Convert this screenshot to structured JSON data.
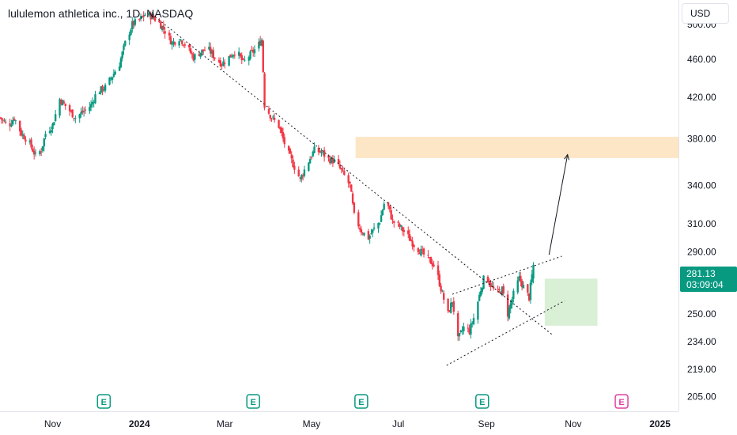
{
  "header": {
    "symbol_title": "lululemon athletica inc., 1D, NASDAQ",
    "currency_label": "USD"
  },
  "price_label": {
    "price": "281.13",
    "countdown": "03:09:04"
  },
  "colors": {
    "up": "#089981",
    "down": "#f23645",
    "target_zone": "#fde6c6",
    "support_zone": "#d9efd6",
    "earnings_past": "#089981",
    "earnings_future": "#e040a0",
    "price_label": "#089981"
  },
  "icons": {
    "earnings_marker": "E"
  },
  "chart_data": {
    "type": "candlestick",
    "title": "lululemon athletica inc., 1D, NASDAQ",
    "price_axis": {
      "scale": "log",
      "ticks": [
        205,
        219,
        234,
        250,
        290,
        310,
        340,
        380,
        420,
        460,
        500
      ],
      "tick_labels": [
        "205.00",
        "219.00",
        "234.00",
        "250.00",
        "290.00",
        "310.00",
        "340.00",
        "380.00",
        "420.00",
        "460.00",
        "500.00"
      ],
      "range": [
        198,
        530
      ]
    },
    "time_axis": {
      "labels": [
        "Nov",
        "2024",
        "Mar",
        "May",
        "Jul",
        "Sep",
        "Nov",
        "2025"
      ],
      "bold_labels": [
        "2024",
        "2025"
      ],
      "range": [
        "2023-09-25",
        "2025-01-14"
      ]
    },
    "candles_sampled_path": [
      [
        "2023-09-25",
        400
      ],
      [
        "2023-10-01",
        392
      ],
      [
        "2023-10-05",
        400
      ],
      [
        "2023-10-10",
        385
      ],
      [
        "2023-10-15",
        378
      ],
      [
        "2023-10-20",
        365
      ],
      [
        "2023-10-24",
        370
      ],
      [
        "2023-10-27",
        385
      ],
      [
        "2023-11-01",
        393
      ],
      [
        "2023-11-06",
        418
      ],
      [
        "2023-11-12",
        408
      ],
      [
        "2023-11-17",
        400
      ],
      [
        "2023-11-22",
        405
      ],
      [
        "2023-11-28",
        412
      ],
      [
        "2023-12-02",
        425
      ],
      [
        "2023-12-08",
        430
      ],
      [
        "2023-12-13",
        442
      ],
      [
        "2023-12-18",
        455
      ],
      [
        "2023-12-22",
        478
      ],
      [
        "2023-12-27",
        500
      ],
      [
        "2024-01-01",
        505
      ],
      [
        "2024-01-05",
        512
      ],
      [
        "2024-01-09",
        510
      ],
      [
        "2024-01-14",
        504
      ],
      [
        "2024-01-19",
        492
      ],
      [
        "2024-01-24",
        478
      ],
      [
        "2024-01-29",
        484
      ],
      [
        "2024-02-03",
        475
      ],
      [
        "2024-02-08",
        462
      ],
      [
        "2024-02-13",
        468
      ],
      [
        "2024-02-18",
        472
      ],
      [
        "2024-02-23",
        462
      ],
      [
        "2024-02-28",
        455
      ],
      [
        "2024-03-04",
        462
      ],
      [
        "2024-03-09",
        470
      ],
      [
        "2024-03-14",
        456
      ],
      [
        "2024-03-19",
        465
      ],
      [
        "2024-03-24",
        474
      ],
      [
        "2024-03-27",
        482
      ],
      [
        "2024-03-29",
        412
      ],
      [
        "2024-04-03",
        400
      ],
      [
        "2024-04-08",
        392
      ],
      [
        "2024-04-13",
        372
      ],
      [
        "2024-04-18",
        358
      ],
      [
        "2024-04-23",
        345
      ],
      [
        "2024-04-28",
        358
      ],
      [
        "2024-05-03",
        370
      ],
      [
        "2024-05-08",
        368
      ],
      [
        "2024-05-13",
        362
      ],
      [
        "2024-05-18",
        360
      ],
      [
        "2024-05-23",
        350
      ],
      [
        "2024-05-28",
        340
      ],
      [
        "2024-05-31",
        316
      ],
      [
        "2024-06-05",
        305
      ],
      [
        "2024-06-10",
        300
      ],
      [
        "2024-06-15",
        308
      ],
      [
        "2024-06-18",
        312
      ],
      [
        "2024-06-22",
        330
      ],
      [
        "2024-06-27",
        312
      ],
      [
        "2024-07-02",
        308
      ],
      [
        "2024-07-07",
        302
      ],
      [
        "2024-07-12",
        295
      ],
      [
        "2024-07-17",
        290
      ],
      [
        "2024-07-22",
        285
      ],
      [
        "2024-07-27",
        280
      ],
      [
        "2024-08-01",
        262
      ],
      [
        "2024-08-05",
        250
      ],
      [
        "2024-08-08",
        258
      ],
      [
        "2024-08-12",
        235
      ],
      [
        "2024-08-16",
        242
      ],
      [
        "2024-08-20",
        240
      ],
      [
        "2024-08-24",
        250
      ],
      [
        "2024-08-28",
        265
      ],
      [
        "2024-08-31",
        275
      ],
      [
        "2024-09-04",
        268
      ],
      [
        "2024-09-08",
        262
      ],
      [
        "2024-09-12",
        265
      ],
      [
        "2024-09-16",
        250
      ],
      [
        "2024-09-20",
        262
      ],
      [
        "2024-09-24",
        272
      ],
      [
        "2024-09-28",
        265
      ],
      [
        "2024-10-01",
        260
      ],
      [
        "2024-10-04",
        281.13
      ]
    ],
    "last_price": 281.13,
    "drawings": {
      "downtrend_line": [
        [
          "2024-01-10",
          512
        ],
        [
          "2024-10-17",
          238
        ]
      ],
      "upper_channel_line": [
        [
          "2024-08-08",
          262
        ],
        [
          "2024-10-24",
          287
        ]
      ],
      "lower_channel_line": [
        [
          "2024-08-04",
          221
        ],
        [
          "2024-10-26",
          258
        ]
      ],
      "projection_arrow": [
        [
          "2024-10-15",
          288
        ],
        [
          "2024-10-28",
          366
        ]
      ],
      "target_zone": {
        "from": "2024-06-01",
        "to": "2025-01-14",
        "low": 363,
        "high": 382
      },
      "support_zone": {
        "from": "2024-10-12",
        "to": "2024-11-18",
        "low": 243,
        "high": 272
      }
    },
    "earnings_markers": [
      {
        "date": "2023-12-07",
        "state": "reported"
      },
      {
        "date": "2024-03-21",
        "state": "reported"
      },
      {
        "date": "2024-06-05",
        "state": "reported"
      },
      {
        "date": "2024-08-29",
        "state": "reported"
      },
      {
        "date": "2024-12-05",
        "state": "upcoming"
      }
    ]
  }
}
